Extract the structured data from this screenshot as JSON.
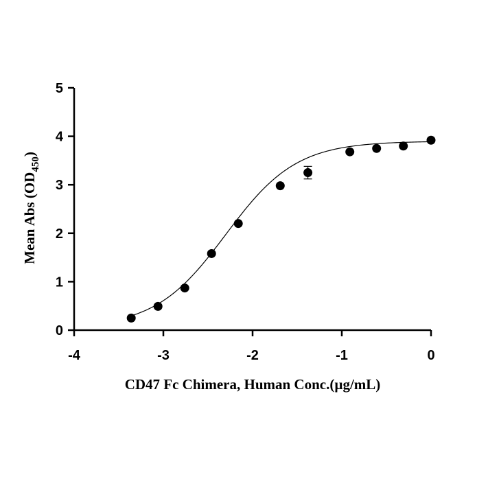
{
  "chart_data": {
    "type": "scatter",
    "xlabel": "CD47 Fc Chimera, Human Conc.(µg/mL)",
    "ylabel": "Mean Abs (OD",
    "ylabel_subscript": "450",
    "ylabel_suffix": ")",
    "xlim": [
      -4,
      0
    ],
    "ylim": [
      0,
      5
    ],
    "x_ticks": [
      -4,
      -3,
      -2,
      -1,
      0
    ],
    "y_ticks": [
      0,
      1,
      2,
      3,
      4,
      5
    ],
    "x_tick_labels": [
      "-4",
      "-3",
      "-2",
      "-1",
      "0"
    ],
    "y_tick_labels": [
      "0",
      "1",
      "2",
      "3",
      "4",
      "5"
    ],
    "grid": false,
    "series": [
      {
        "x": [
          -3.36,
          -3.06,
          -2.76,
          -2.46,
          -2.16,
          -1.69,
          -1.38,
          -0.91,
          -0.61,
          -0.31,
          0.0
        ],
        "y": [
          0.25,
          0.49,
          0.87,
          1.58,
          2.2,
          2.98,
          3.25,
          3.68,
          3.75,
          3.8,
          3.92
        ],
        "err": [
          0,
          0,
          0,
          0,
          0,
          0,
          0.13,
          0,
          0,
          0,
          0
        ]
      }
    ],
    "fit": {
      "model": "4PL",
      "bottom": 0.05,
      "top": 3.9,
      "logEC50": -2.3,
      "hill": 1.1,
      "x_range": [
        -3.36,
        0.0
      ]
    }
  }
}
